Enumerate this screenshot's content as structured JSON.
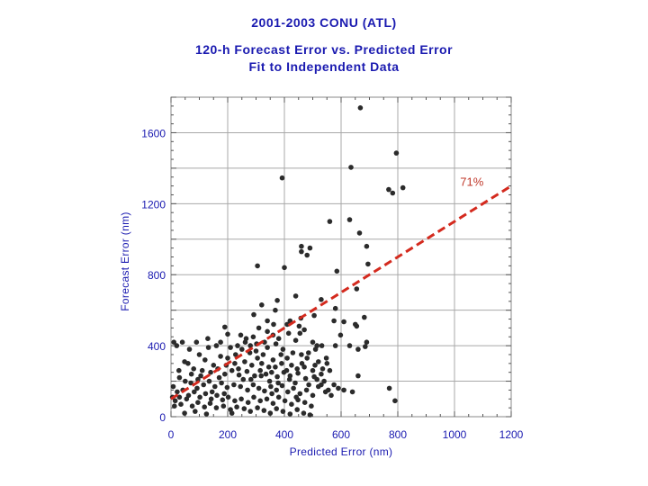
{
  "chart_data": {
    "type": "scatter",
    "title": "2001-2003 CONU (ATL)",
    "subtitle": "120-h Forecast Error vs. Predicted Error",
    "subtitle2": "Fit to Independent Data",
    "xlabel": "Predicted Error (nm)",
    "ylabel": "Forecast Error (nm)",
    "xlim": [
      0,
      1200
    ],
    "ylim": [
      0,
      1800
    ],
    "xticks": [
      0,
      200,
      400,
      600,
      800,
      1000,
      1200
    ],
    "yticks": [
      0,
      400,
      800,
      1200,
      1600
    ],
    "x_grid_step": 200,
    "y_grid_step": 200,
    "grid": true,
    "colors": {
      "points": "#2b2b2b",
      "fit_line": "#d42a1e",
      "text": "#1a1ab0",
      "annotation": "#c0392b"
    },
    "fit_line": {
      "x": [
        0,
        1200
      ],
      "y": [
        100,
        1300
      ],
      "label": "71%"
    },
    "points": [
      [
        668,
        1740
      ],
      [
        635,
        1405
      ],
      [
        795,
        1485
      ],
      [
        392,
        1345
      ],
      [
        818,
        1290
      ],
      [
        768,
        1280
      ],
      [
        782,
        1260
      ],
      [
        630,
        1110
      ],
      [
        560,
        1100
      ],
      [
        665,
        1035
      ],
      [
        490,
        950
      ],
      [
        460,
        960
      ],
      [
        460,
        930
      ],
      [
        690,
        960
      ],
      [
        480,
        910
      ],
      [
        305,
        850
      ],
      [
        400,
        840
      ],
      [
        585,
        820
      ],
      [
        695,
        860
      ],
      [
        655,
        720
      ],
      [
        440,
        680
      ],
      [
        375,
        655
      ],
      [
        530,
        660
      ],
      [
        320,
        630
      ],
      [
        580,
        610
      ],
      [
        368,
        600
      ],
      [
        292,
        575
      ],
      [
        505,
        570
      ],
      [
        458,
        555
      ],
      [
        610,
        535
      ],
      [
        650,
        520
      ],
      [
        410,
        520
      ],
      [
        455,
        470
      ],
      [
        470,
        490
      ],
      [
        575,
        540
      ],
      [
        655,
        510
      ],
      [
        190,
        505
      ],
      [
        200,
        465
      ],
      [
        246,
        460
      ],
      [
        265,
        440
      ],
      [
        290,
        450
      ],
      [
        330,
        420
      ],
      [
        360,
        460
      ],
      [
        380,
        440
      ],
      [
        415,
        470
      ],
      [
        440,
        430
      ],
      [
        500,
        420
      ],
      [
        510,
        380
      ],
      [
        532,
        400
      ],
      [
        580,
        400
      ],
      [
        630,
        400
      ],
      [
        690,
        420
      ],
      [
        685,
        395
      ],
      [
        130,
        440
      ],
      [
        90,
        420
      ],
      [
        40,
        420
      ],
      [
        20,
        400
      ],
      [
        10,
        420
      ],
      [
        160,
        400
      ],
      [
        210,
        390
      ],
      [
        250,
        380
      ],
      [
        280,
        400
      ],
      [
        300,
        370
      ],
      [
        340,
        390
      ],
      [
        370,
        410
      ],
      [
        395,
        380
      ],
      [
        430,
        360
      ],
      [
        460,
        350
      ],
      [
        480,
        330
      ],
      [
        520,
        310
      ],
      [
        550,
        300
      ],
      [
        100,
        350
      ],
      [
        120,
        320
      ],
      [
        150,
        290
      ],
      [
        175,
        340
      ],
      [
        200,
        330
      ],
      [
        225,
        300
      ],
      [
        260,
        310
      ],
      [
        285,
        290
      ],
      [
        305,
        330
      ],
      [
        320,
        300
      ],
      [
        345,
        280
      ],
      [
        360,
        320
      ],
      [
        390,
        300
      ],
      [
        410,
        330
      ],
      [
        425,
        290
      ],
      [
        445,
        270
      ],
      [
        470,
        280
      ],
      [
        500,
        260
      ],
      [
        530,
        240
      ],
      [
        560,
        260
      ],
      [
        60,
        300
      ],
      [
        80,
        270
      ],
      [
        110,
        260
      ],
      [
        140,
        250
      ],
      [
        165,
        270
      ],
      [
        190,
        240
      ],
      [
        215,
        260
      ],
      [
        240,
        235
      ],
      [
        268,
        255
      ],
      [
        295,
        230
      ],
      [
        315,
        260
      ],
      [
        335,
        240
      ],
      [
        355,
        250
      ],
      [
        375,
        225
      ],
      [
        398,
        250
      ],
      [
        420,
        230
      ],
      [
        448,
        245
      ],
      [
        475,
        215
      ],
      [
        505,
        225
      ],
      [
        540,
        200
      ],
      [
        575,
        180
      ],
      [
        610,
        150
      ],
      [
        640,
        140
      ],
      [
        660,
        230
      ],
      [
        770,
        160
      ],
      [
        790,
        90
      ],
      [
        30,
        220
      ],
      [
        50,
        200
      ],
      [
        70,
        190
      ],
      [
        95,
        210
      ],
      [
        115,
        180
      ],
      [
        135,
        200
      ],
      [
        155,
        170
      ],
      [
        178,
        190
      ],
      [
        198,
        165
      ],
      [
        222,
        180
      ],
      [
        245,
        170
      ],
      [
        270,
        150
      ],
      [
        290,
        180
      ],
      [
        310,
        160
      ],
      [
        330,
        145
      ],
      [
        352,
        170
      ],
      [
        372,
        150
      ],
      [
        392,
        175
      ],
      [
        412,
        140
      ],
      [
        432,
        160
      ],
      [
        455,
        130
      ],
      [
        478,
        150
      ],
      [
        500,
        120
      ],
      [
        520,
        170
      ],
      [
        545,
        140
      ],
      [
        565,
        120
      ],
      [
        8,
        170
      ],
      [
        22,
        140
      ],
      [
        42,
        150
      ],
      [
        62,
        120
      ],
      [
        82,
        140
      ],
      [
        102,
        110
      ],
      [
        122,
        130
      ],
      [
        142,
        100
      ],
      [
        162,
        120
      ],
      [
        182,
        95
      ],
      [
        202,
        110
      ],
      [
        225,
        90
      ],
      [
        248,
        100
      ],
      [
        272,
        80
      ],
      [
        292,
        110
      ],
      [
        315,
        90
      ],
      [
        338,
        100
      ],
      [
        360,
        75
      ],
      [
        380,
        110
      ],
      [
        402,
        90
      ],
      [
        425,
        70
      ],
      [
        448,
        95
      ],
      [
        472,
        80
      ],
      [
        495,
        60
      ],
      [
        15,
        90
      ],
      [
        35,
        70
      ],
      [
        55,
        100
      ],
      [
        75,
        60
      ],
      [
        95,
        80
      ],
      [
        118,
        55
      ],
      [
        138,
        75
      ],
      [
        160,
        50
      ],
      [
        185,
        60
      ],
      [
        210,
        40
      ],
      [
        232,
        55
      ],
      [
        258,
        45
      ],
      [
        280,
        30
      ],
      [
        305,
        50
      ],
      [
        328,
        35
      ],
      [
        350,
        20
      ],
      [
        372,
        45
      ],
      [
        395,
        30
      ],
      [
        420,
        15
      ],
      [
        445,
        40
      ],
      [
        468,
        20
      ],
      [
        490,
        10
      ],
      [
        48,
        20
      ],
      [
        85,
        30
      ],
      [
        125,
        15
      ],
      [
        215,
        20
      ],
      [
        5,
        110
      ],
      [
        12,
        60
      ],
      [
        28,
        260
      ],
      [
        65,
        380
      ],
      [
        105,
        230
      ],
      [
        145,
        140
      ],
      [
        170,
        220
      ],
      [
        195,
        290
      ],
      [
        228,
        350
      ],
      [
        255,
        210
      ],
      [
        278,
        360
      ],
      [
        302,
        410
      ],
      [
        325,
        350
      ],
      [
        348,
        200
      ],
      [
        368,
        280
      ],
      [
        388,
        350
      ],
      [
        408,
        260
      ],
      [
        438,
        190
      ],
      [
        462,
        300
      ],
      [
        485,
        360
      ],
      [
        515,
        210
      ],
      [
        548,
        330
      ],
      [
        362,
        520
      ],
      [
        340,
        480
      ],
      [
        310,
        500
      ],
      [
        262,
        420
      ],
      [
        235,
        400
      ],
      [
        340,
        540
      ],
      [
        452,
        510
      ],
      [
        515,
        400
      ],
      [
        530,
        180
      ],
      [
        555,
        150
      ],
      [
        590,
        160
      ],
      [
        598,
        460
      ],
      [
        660,
        380
      ],
      [
        682,
        560
      ],
      [
        420,
        540
      ],
      [
        48,
        310
      ],
      [
        72,
        240
      ],
      [
        92,
        160
      ],
      [
        132,
        390
      ],
      [
        175,
        420
      ],
      [
        188,
        130
      ],
      [
        238,
        270
      ],
      [
        282,
        210
      ],
      [
        318,
        230
      ],
      [
        356,
        130
      ],
      [
        378,
        190
      ],
      [
        418,
        210
      ],
      [
        442,
        110
      ],
      [
        486,
        180
      ],
      [
        508,
        290
      ],
      [
        535,
        270
      ],
      [
        30,
        110
      ]
    ]
  }
}
